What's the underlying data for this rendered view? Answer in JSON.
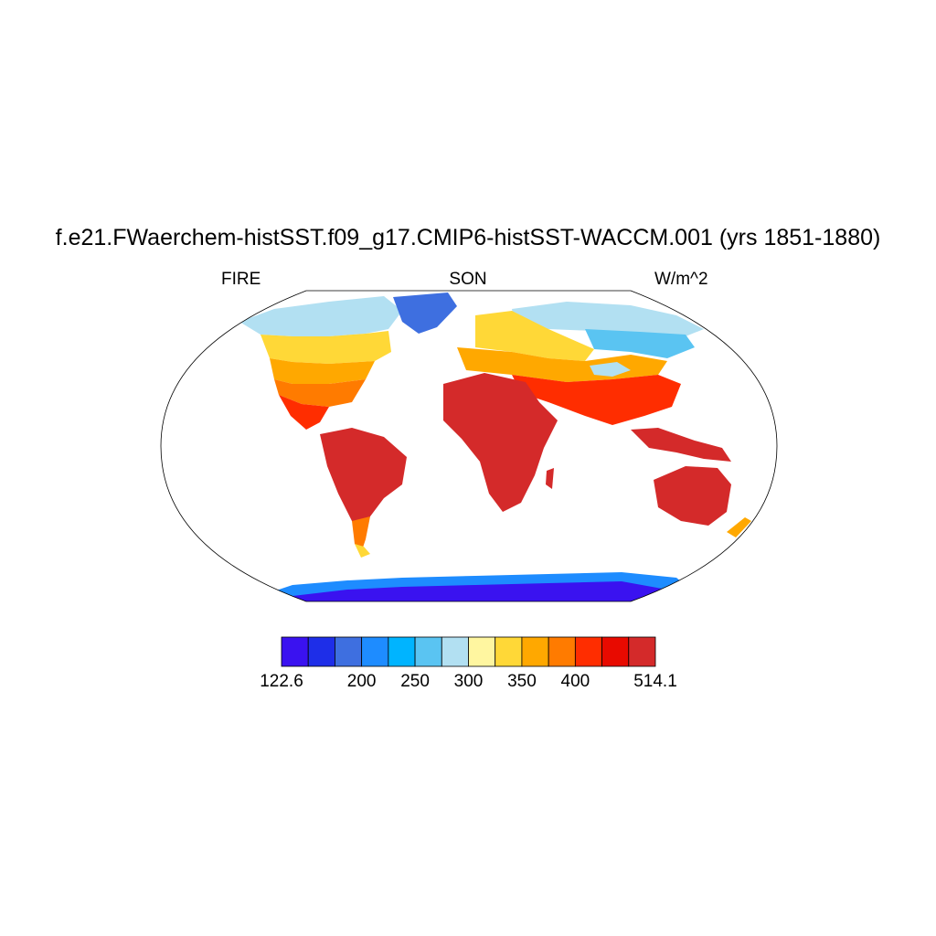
{
  "title": "f.e21.FWaerchem-histSST.f09_g17.CMIP6-histSST-WACCM.001 (yrs 1851-1880)",
  "variable": "FIRE",
  "season": "SON",
  "units": "W/m^2",
  "colorbar": {
    "min": 122.6,
    "max": 514.1,
    "tick_labels": [
      {
        "value": 122.6,
        "label": "122.6"
      },
      {
        "value": 200,
        "label": "200"
      },
      {
        "value": 250,
        "label": "250"
      },
      {
        "value": 300,
        "label": "300"
      },
      {
        "value": 350,
        "label": "350"
      },
      {
        "value": 400,
        "label": "400"
      },
      {
        "value": 514.1,
        "label": "514.1"
      }
    ],
    "colors": [
      "#3a12f0",
      "#1e2ee8",
      "#3e6fe0",
      "#1e8cff",
      "#00b4ff",
      "#5ac4f2",
      "#b2e0f2",
      "#fff6a0",
      "#ffd837",
      "#ffa800",
      "#ff7b00",
      "#ff2d00",
      "#e80a00",
      "#d42a2a"
    ]
  }
}
